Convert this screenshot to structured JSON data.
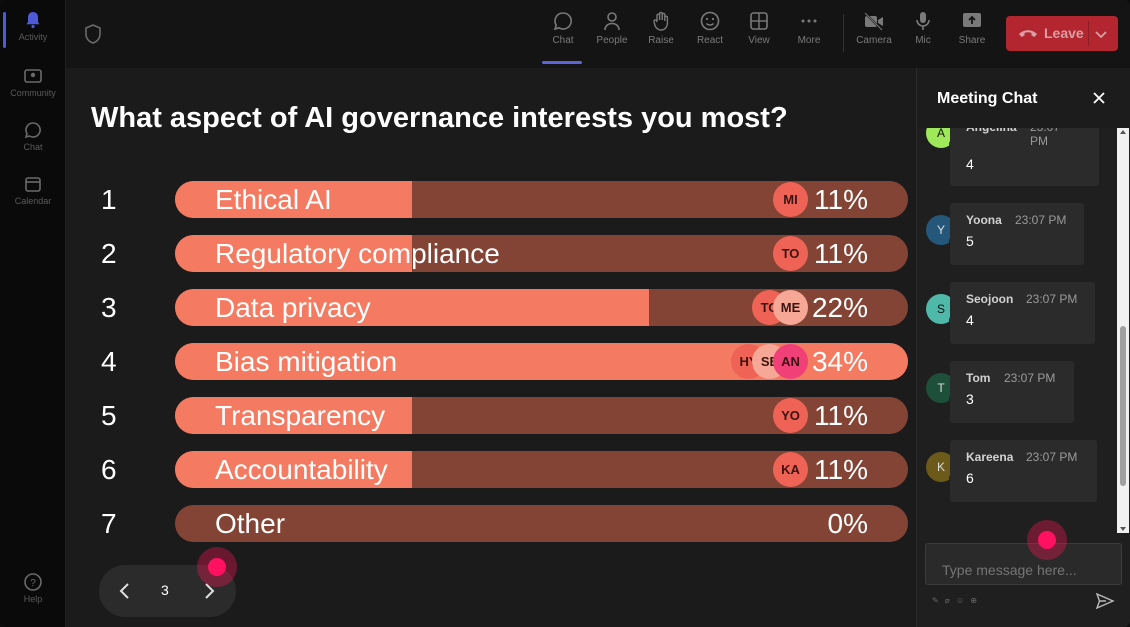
{
  "rail": {
    "items": [
      {
        "label": "Activity",
        "icon": "bell-icon"
      },
      {
        "label": "Community",
        "icon": "community-icon"
      },
      {
        "label": "Chat",
        "icon": "chat-icon"
      },
      {
        "label": "Calendar",
        "icon": "calendar-icon"
      },
      {
        "label": "Help",
        "icon": "help-icon"
      }
    ]
  },
  "toolbar": {
    "chat": "Chat",
    "people": "People",
    "raise": "Raise",
    "react": "React",
    "view": "View",
    "more": "More",
    "camera": "Camera",
    "mic": "Mic",
    "share": "Share",
    "leave": "Leave"
  },
  "poll": {
    "question": "What aspect of AI governance interests you most?",
    "options": [
      {
        "num": "1",
        "label": "Ethical AI",
        "pct": "11%",
        "fill": 0.11,
        "avatars": [
          "MI"
        ]
      },
      {
        "num": "2",
        "label": "Regulatory compliance",
        "pct": "11%",
        "fill": 0.11,
        "avatars": [
          "TO"
        ]
      },
      {
        "num": "3",
        "label": "Data privacy",
        "pct": "22%",
        "fill": 0.22,
        "avatars": [
          "TO",
          "ME"
        ]
      },
      {
        "num": "4",
        "label": "Bias mitigation",
        "pct": "34%",
        "fill": 0.34,
        "avatars": [
          "HY",
          "SE",
          "AN"
        ]
      },
      {
        "num": "5",
        "label": "Transparency",
        "pct": "11%",
        "fill": 0.11,
        "avatars": [
          "YO"
        ]
      },
      {
        "num": "6",
        "label": "Accountability",
        "pct": "11%",
        "fill": 0.11,
        "avatars": [
          "KA"
        ]
      },
      {
        "num": "7",
        "label": "Other",
        "pct": "0%",
        "fill": 0,
        "avatars": []
      }
    ],
    "page": "3"
  },
  "chat": {
    "title": "Meeting Chat",
    "messages": [
      {
        "initial": "A",
        "name": "Angelina",
        "time": "23:07 PM",
        "text": "4",
        "color": "#9fe85a"
      },
      {
        "initial": "Y",
        "name": "Yoona",
        "time": "23:07 PM",
        "text": "5",
        "color": "#24577a"
      },
      {
        "initial": "S",
        "name": "Seojoon",
        "time": "23:07 PM",
        "text": "4",
        "color": "#4fb8a8"
      },
      {
        "initial": "T",
        "name": "Tom",
        "time": "23:07 PM",
        "text": "3",
        "color": "#1d4f3a"
      },
      {
        "initial": "K",
        "name": "Kareena",
        "time": "23:07 PM",
        "text": "6",
        "color": "#6b5a1a"
      }
    ],
    "input_placeholder": "Type message here..."
  }
}
